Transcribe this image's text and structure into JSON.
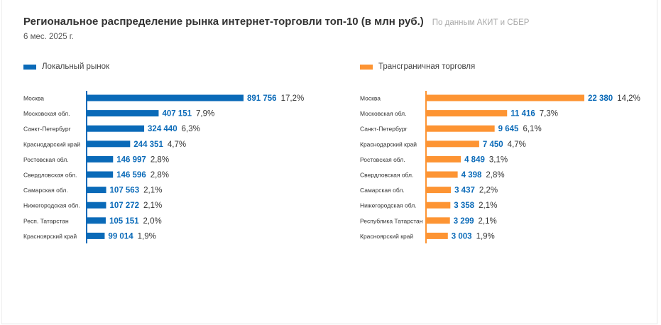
{
  "header": {
    "title": "Региональное распределение рынка интернет-торговли топ-10 (в млн руб.)",
    "source": "По данным АКИТ и СБЕР",
    "period": "6 мес. 2025 г."
  },
  "colors": {
    "local": "#0a6ab8",
    "cross": "#fd9433",
    "value_text": "#0a6ab8",
    "pct_text": "#333333"
  },
  "chart_data": [
    {
      "type": "bar",
      "orientation": "horizontal",
      "legend": "Локальный рынок",
      "categories": [
        "Москва",
        "Московская обл.",
        "Санкт-Петербург",
        "Краснодарский край",
        "Ростовская обл.",
        "Свердловская обл.",
        "Самарская обл.",
        "Нижегородская обл.",
        "Респ. Татарстан",
        "Красноярский край"
      ],
      "values": [
        891756,
        407151,
        324440,
        244351,
        146997,
        146596,
        107563,
        107272,
        105151,
        99014
      ],
      "value_labels": [
        "891 756",
        "407 151",
        "324 440",
        "244 351",
        "146 997",
        "146 596",
        "107 563",
        "107 272",
        "105 151",
        "99 014"
      ],
      "shares": [
        "17,2%",
        "7,9%",
        "6,3%",
        "4,7%",
        "2,8%",
        "2,8%",
        "2,1%",
        "2,1%",
        "2,0%",
        "1,9%"
      ]
    },
    {
      "type": "bar",
      "orientation": "horizontal",
      "legend": "Трансграничная торговля",
      "categories": [
        "Москва",
        "Московская обл.",
        "Санкт-Петербург",
        "Краснодарский край",
        "Ростовская обл.",
        "Свердловская обл.",
        "Самарская обл.",
        "Нижегородская обл.",
        "Республика Татарстан",
        "Красноярский край"
      ],
      "values": [
        22380,
        11416,
        9645,
        7450,
        4849,
        4398,
        3437,
        3358,
        3299,
        3003
      ],
      "value_labels": [
        "22 380",
        "11 416",
        "9 645",
        "7 450",
        "4 849",
        "4 398",
        "3 437",
        "3 358",
        "3 299",
        "3 003"
      ],
      "shares": [
        "14,2%",
        "7,3%",
        "6,1%",
        "4,7%",
        "3,1%",
        "2,8%",
        "2,2%",
        "2,1%",
        "2,1%",
        "1,9%"
      ]
    }
  ]
}
